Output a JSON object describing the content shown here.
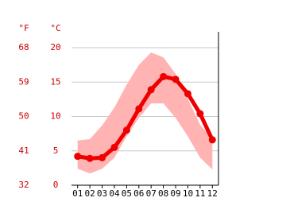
{
  "chart_data": {
    "type": "line",
    "y_label": "°C",
    "y2_label": "°F",
    "categories": [
      "01",
      "02",
      "03",
      "04",
      "05",
      "06",
      "07",
      "08",
      "09",
      "10",
      "11",
      "12"
    ],
    "series": [
      {
        "color": "#ee0000",
        "values": [
          4.2,
          3.9,
          4.0,
          5.5,
          8.0,
          11.1,
          13.9,
          15.8,
          15.4,
          13.3,
          10.4,
          6.6
        ]
      }
    ],
    "band": {
      "color": "#ffb3b3",
      "high": [
        6.5,
        6.7,
        8.7,
        11.3,
        14.6,
        17.5,
        19.3,
        18.6,
        16.2,
        12.5,
        8.8,
        6.7
      ],
      "low": [
        2.4,
        1.7,
        2.4,
        4.0,
        7.1,
        9.8,
        11.9,
        11.9,
        9.8,
        7.1,
        4.0,
        2.3
      ]
    },
    "ylim": [
      0,
      20
    ],
    "yticks": [
      0,
      5,
      10,
      15,
      20
    ],
    "y2lim": [
      32,
      68
    ],
    "y2ticks": [
      32,
      41,
      50,
      59,
      68
    ],
    "label_color": "#cc0000",
    "grid": true
  }
}
